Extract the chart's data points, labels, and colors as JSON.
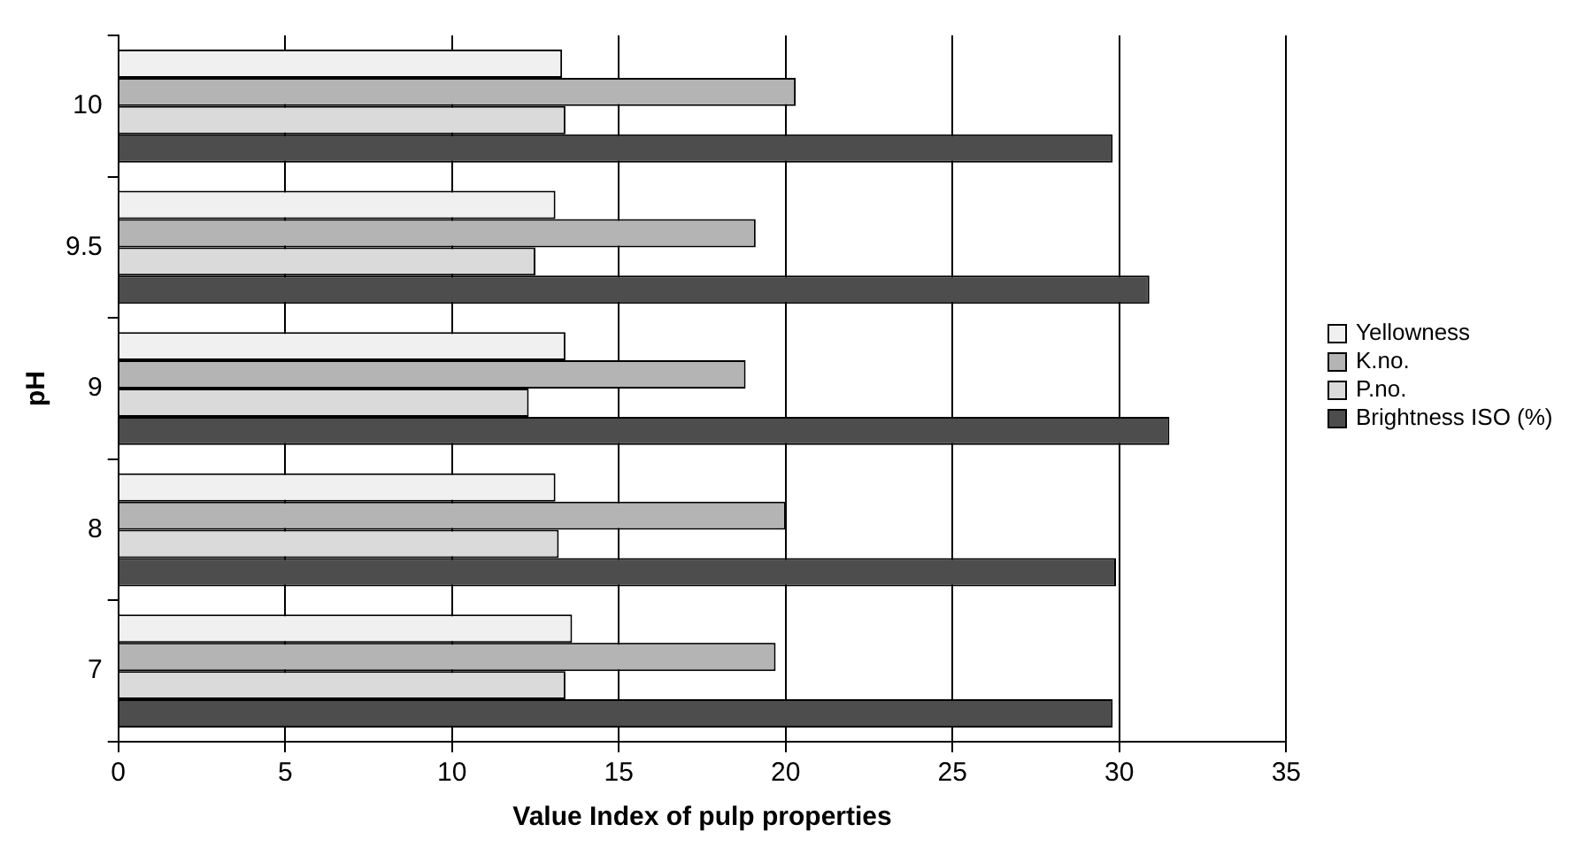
{
  "chart_data": {
    "type": "bar",
    "orientation": "horizontal",
    "xlabel": "Value Index of pulp properties",
    "ylabel": "pH",
    "categories": [
      "10",
      "9.5",
      "9",
      "8",
      "7"
    ],
    "series": [
      {
        "name": "Yellowness",
        "color": "#f0f0f0",
        "values": [
          13.3,
          13.1,
          13.4,
          13.1,
          13.6
        ]
      },
      {
        "name": "K.no.",
        "color": "#b4b4b4",
        "values": [
          20.3,
          19.1,
          18.8,
          20.0,
          19.7
        ]
      },
      {
        "name": "P.no.",
        "color": "#dadada",
        "values": [
          13.4,
          12.5,
          12.3,
          13.2,
          13.4
        ]
      },
      {
        "name": "Brightness ISO (%)",
        "color": "#4d4d4d",
        "values": [
          29.8,
          30.9,
          31.5,
          29.9,
          29.8
        ]
      }
    ],
    "xlim": [
      0,
      35
    ],
    "xticks": [
      0,
      5,
      10,
      15,
      20,
      25,
      30,
      35
    ],
    "grid": "x",
    "legend": "right"
  }
}
